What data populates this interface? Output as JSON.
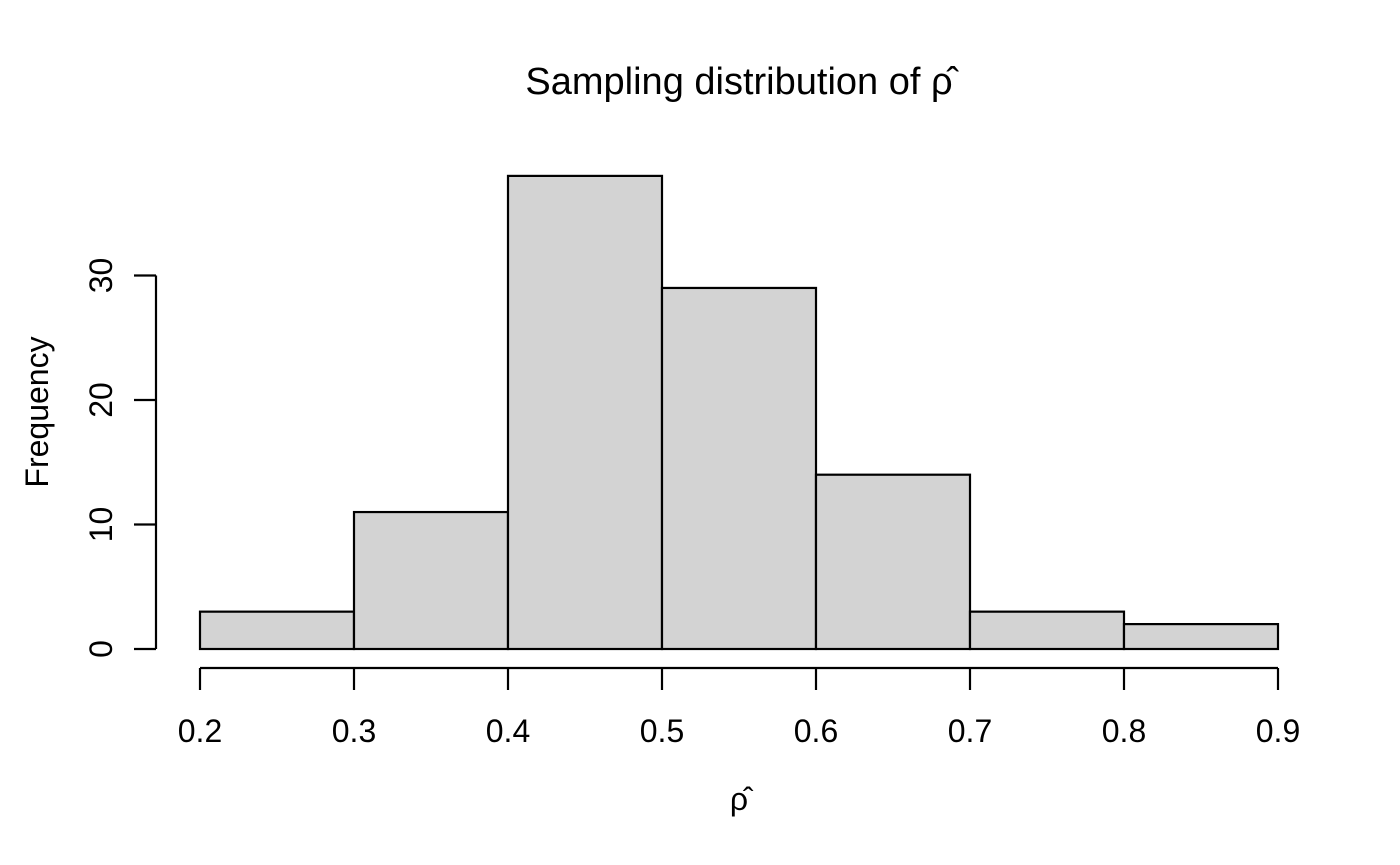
{
  "chart_data": {
    "type": "bar",
    "subtype": "histogram",
    "title": "Sampling distribution of ρ̂",
    "xlabel": "ρ̂",
    "ylabel": "Frequency",
    "bin_edges": [
      0.2,
      0.3,
      0.4,
      0.5,
      0.6,
      0.7,
      0.8,
      0.9
    ],
    "frequencies": [
      3,
      11,
      38,
      29,
      14,
      3,
      2
    ],
    "x_tick_values": [
      0.2,
      0.3,
      0.4,
      0.5,
      0.6,
      0.7,
      0.8,
      0.9
    ],
    "x_tick_labels": [
      "0.2",
      "0.3",
      "0.4",
      "0.5",
      "0.6",
      "0.7",
      "0.8",
      "0.9"
    ],
    "y_tick_values": [
      0,
      10,
      20,
      30
    ],
    "y_tick_labels": [
      "0",
      "10",
      "20",
      "30"
    ],
    "xlim": [
      0.2,
      0.9
    ],
    "ylim": [
      0,
      38
    ],
    "grid": false,
    "legend": null,
    "colors": {
      "bar_fill": "#d3d3d3",
      "bar_stroke": "#000000",
      "axis_stroke": "#000000",
      "background": "#ffffff"
    }
  }
}
